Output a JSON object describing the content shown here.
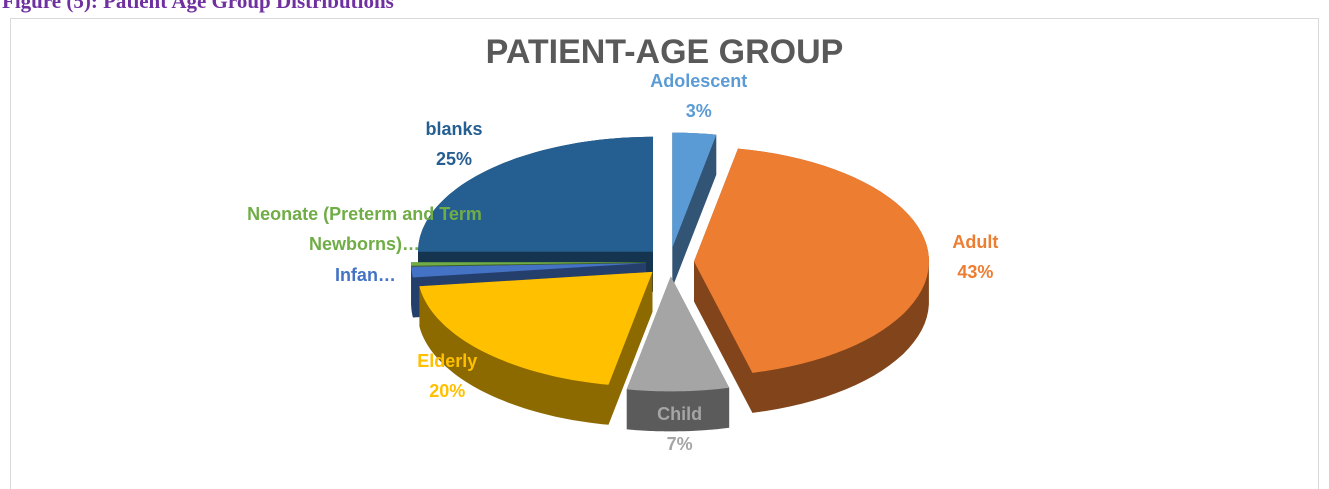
{
  "caption": "Figure (5): Patient Age Group Distributions",
  "chart_data": {
    "type": "pie",
    "title": "PATIENT-AGE GROUP",
    "categories": [
      "Adolescent",
      "Adult",
      "Child",
      "Elderly",
      "Infan…",
      "Neonate (Preterm and Term Newborns)…",
      "blanks"
    ],
    "values": [
      3,
      43,
      7,
      20,
      1.5,
      0.5,
      25
    ],
    "value_labels": [
      "3%",
      "43%",
      "7%",
      "20%",
      null,
      null,
      "25%"
    ],
    "colors": [
      "#5b9bd5",
      "#ed7d31",
      "#a5a5a5",
      "#ffc000",
      "#4472c4",
      "#70ad47",
      "#255e91"
    ]
  }
}
